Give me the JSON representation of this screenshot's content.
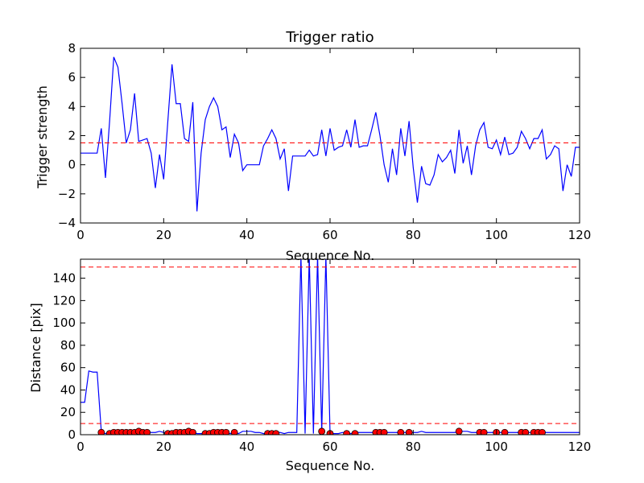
{
  "chart_data": [
    {
      "type": "line",
      "title": "Trigger ratio",
      "xlabel": "Sequence No.",
      "ylabel": "Trigger strength",
      "xlim": [
        0,
        120
      ],
      "ylim": [
        -4,
        8
      ],
      "xticks": [
        0,
        20,
        40,
        60,
        80,
        100,
        120
      ],
      "yticks": [
        -4,
        -2,
        0,
        2,
        4,
        6,
        8
      ],
      "grid": false,
      "series": [
        {
          "color": "#0000ff",
          "x": [
            0,
            1,
            2,
            3,
            4,
            5,
            6,
            7,
            8,
            9,
            10,
            11,
            12,
            13,
            14,
            15,
            16,
            17,
            18,
            19,
            20,
            21,
            22,
            23,
            24,
            25,
            26,
            27,
            28,
            29,
            30,
            31,
            32,
            33,
            34,
            35,
            36,
            37,
            38,
            39,
            40,
            41,
            42,
            43,
            44,
            45,
            46,
            47,
            48,
            49,
            50,
            51,
            52,
            53,
            54,
            55,
            56,
            57,
            58,
            59,
            60,
            61,
            62,
            63,
            64,
            65,
            66,
            67,
            68,
            69,
            70,
            71,
            72,
            73,
            74,
            75,
            76,
            77,
            78,
            79,
            80,
            81,
            82,
            83,
            84,
            85,
            86,
            87,
            88,
            89,
            90,
            91,
            92,
            93,
            94,
            95,
            96,
            97,
            98,
            99,
            100,
            101,
            102,
            103,
            104,
            105,
            106,
            107,
            108,
            109,
            110,
            111,
            112,
            113,
            114,
            115,
            116,
            117,
            118,
            119,
            120
          ],
          "y": [
            0.8,
            0.8,
            0.8,
            0.8,
            0.8,
            2.5,
            -0.9,
            3.0,
            7.4,
            6.7,
            4.2,
            1.5,
            2.4,
            4.9,
            1.6,
            1.7,
            1.8,
            0.8,
            -1.6,
            0.7,
            -1.0,
            3.0,
            6.9,
            4.2,
            4.2,
            1.8,
            1.6,
            4.3,
            -3.2,
            0.8,
            3.1,
            4.0,
            4.6,
            4.0,
            2.4,
            2.6,
            0.5,
            2.1,
            1.5,
            -0.4,
            0.0,
            0.0,
            0.0,
            0.0,
            1.3,
            1.8,
            2.4,
            1.8,
            0.4,
            1.1,
            -1.8,
            0.6,
            0.6,
            0.6,
            0.6,
            1.0,
            0.6,
            0.7,
            2.4,
            0.6,
            2.5,
            1.0,
            1.2,
            1.3,
            2.4,
            1.2,
            3.1,
            1.2,
            1.3,
            1.3,
            2.4,
            3.6,
            2.0,
            0.0,
            -1.2,
            1.1,
            -0.7,
            2.5,
            0.6,
            3.0,
            -0.2,
            -2.6,
            -0.1,
            -1.3,
            -1.4,
            -0.7,
            0.7,
            0.2,
            0.5,
            1.0,
            -0.6,
            2.4,
            0.1,
            1.3,
            -0.7,
            1.3,
            2.4,
            2.9,
            1.2,
            1.1,
            1.7,
            0.7,
            1.9,
            0.7,
            0.8,
            1.2,
            2.3,
            1.8,
            1.1,
            1.8,
            1.8,
            2.4,
            0.4,
            0.7,
            1.3,
            1.1,
            -1.8,
            0.0,
            -0.8,
            1.2,
            1.2
          ]
        },
        {
          "type": "hline",
          "color": "#ff0000",
          "style": "dashed",
          "y": 1.5
        }
      ]
    },
    {
      "type": "line",
      "title": "",
      "xlabel": "Sequence No.",
      "ylabel": "Distance [pix]",
      "xlim": [
        0,
        120
      ],
      "ylim": [
        0,
        157
      ],
      "xticks": [
        0,
        20,
        40,
        60,
        80,
        100,
        120
      ],
      "yticks": [
        0,
        20,
        40,
        60,
        80,
        100,
        120,
        140
      ],
      "grid": false,
      "series": [
        {
          "color": "#0000ff",
          "x": [
            0,
            1,
            2,
            3,
            4,
            5,
            6,
            7,
            8,
            9,
            10,
            11,
            12,
            13,
            14,
            15,
            16,
            17,
            18,
            19,
            20,
            21,
            22,
            23,
            24,
            25,
            26,
            27,
            28,
            29,
            30,
            31,
            32,
            33,
            34,
            35,
            36,
            37,
            38,
            39,
            40,
            41,
            42,
            43,
            44,
            45,
            46,
            47,
            48,
            49,
            50,
            51,
            52,
            53,
            54,
            55,
            56,
            57,
            58,
            59,
            60,
            61,
            62,
            63,
            64,
            65,
            66,
            67,
            68,
            69,
            70,
            71,
            72,
            73,
            74,
            75,
            76,
            77,
            78,
            79,
            80,
            81,
            82,
            83,
            84,
            85,
            86,
            87,
            88,
            89,
            90,
            91,
            92,
            93,
            94,
            95,
            96,
            97,
            98,
            99,
            100,
            101,
            102,
            103,
            104,
            105,
            106,
            107,
            108,
            109,
            110,
            111,
            112,
            113,
            114,
            115,
            116,
            117,
            118,
            119,
            120
          ],
          "y": [
            29,
            29,
            57,
            56,
            56,
            3,
            1,
            2,
            2,
            2,
            2,
            2,
            2,
            2,
            3,
            2,
            2,
            2,
            2,
            3,
            2,
            1,
            1,
            2,
            2,
            2,
            3,
            2,
            1,
            1,
            1,
            1,
            2,
            2,
            2,
            2,
            1,
            2,
            1,
            3,
            3,
            3,
            2,
            2,
            1,
            1,
            1,
            2,
            2,
            1,
            2,
            2,
            2,
            160,
            1,
            160,
            1,
            160,
            2,
            160,
            1,
            1,
            1,
            2,
            1,
            1,
            2,
            2,
            2,
            2,
            2,
            2,
            2,
            2,
            2,
            2,
            2,
            2,
            2,
            2,
            2,
            2,
            3,
            2,
            2,
            2,
            2,
            2,
            2,
            2,
            2,
            3,
            3,
            3,
            2,
            2,
            2,
            2,
            2,
            2,
            2,
            2,
            2,
            2,
            2,
            2,
            2,
            2,
            2,
            2,
            2,
            2,
            2,
            2,
            2,
            2,
            2,
            2,
            2,
            2,
            2
          ]
        },
        {
          "type": "markers",
          "color": "#ff0000",
          "marker": "circle",
          "x": [
            5,
            7,
            8,
            9,
            10,
            11,
            12,
            13,
            14,
            15,
            16,
            21,
            22,
            23,
            24,
            25,
            26,
            27,
            30,
            31,
            32,
            33,
            34,
            35,
            37,
            45,
            46,
            47,
            58,
            60,
            64,
            66,
            71,
            72,
            73,
            77,
            79,
            91,
            96,
            97,
            100,
            102,
            106,
            107,
            109,
            110,
            111
          ],
          "y": [
            2,
            1,
            2,
            2,
            2,
            2,
            2,
            2,
            3,
            2,
            2,
            1,
            1,
            2,
            2,
            2,
            3,
            2,
            1,
            1,
            2,
            2,
            2,
            2,
            2,
            1,
            1,
            1,
            3,
            1,
            1,
            1,
            2,
            2,
            2,
            2,
            2,
            3,
            2,
            2,
            2,
            2,
            2,
            2,
            2,
            2,
            2
          ]
        },
        {
          "type": "hline",
          "color": "#ff0000",
          "style": "dashed",
          "y": 150
        },
        {
          "type": "hline",
          "color": "#ff0000",
          "style": "dashed",
          "y": 10
        }
      ]
    }
  ]
}
